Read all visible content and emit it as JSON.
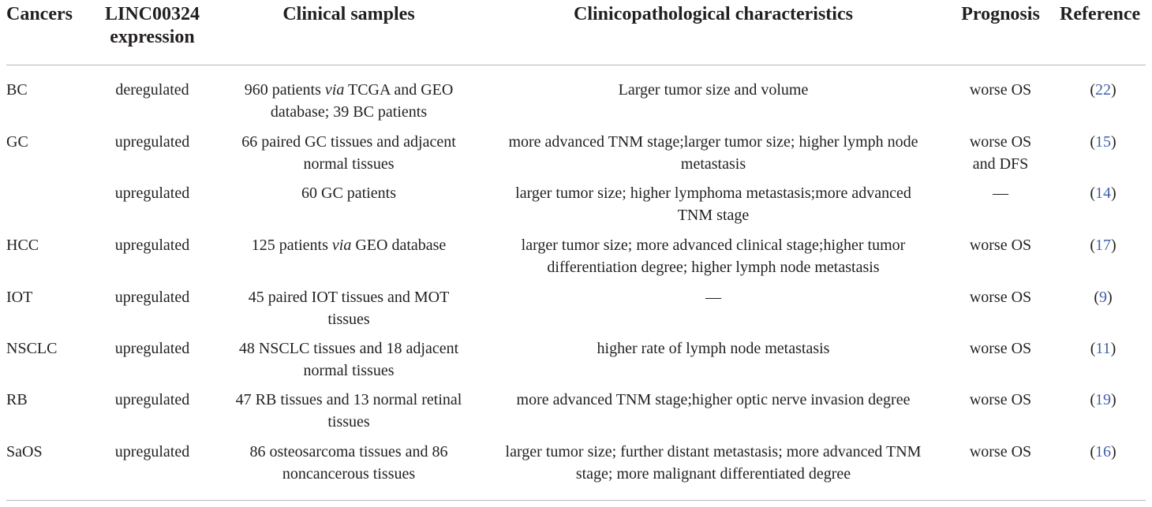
{
  "headers": {
    "cancers": "Cancers",
    "expr_line1": "LINC00324",
    "expr_line2": "expression",
    "samples": "Clinical samples",
    "clinico": "Clinicopathological characteristics",
    "prognosis": "Prognosis",
    "reference": "Reference"
  },
  "rows": [
    {
      "cancer": "BC",
      "expression": "deregulated",
      "samples_l1_a": "960 patients ",
      "samples_l1_em": "via",
      "samples_l1_b": " TCGA and GEO",
      "samples_l2": "database; 39 BC patients",
      "clin_l1": "Larger tumor size and volume",
      "clin_l2": "",
      "prog_l1": "worse OS",
      "prog_l2": "",
      "ref": "22"
    },
    {
      "cancer": "GC",
      "expression": "upregulated",
      "samples_l1": "66 paired GC tissues and adjacent",
      "samples_l2": "normal tissues",
      "clin_l1": "more advanced TNM stage;larger tumor size; higher lymph node",
      "clin_l2": "metastasis",
      "prog_l1": "worse OS",
      "prog_l2": "and DFS",
      "ref": "15"
    },
    {
      "cancer": "",
      "expression": "upregulated",
      "samples_l1": "60 GC patients",
      "samples_l2": "",
      "clin_l1": "larger tumor size; higher lymphoma metastasis;more advanced",
      "clin_l2": "TNM stage",
      "prog_l1": "—",
      "prog_l2": "",
      "ref": "14"
    },
    {
      "cancer": "HCC",
      "expression": "upregulated",
      "samples_l1_a": "125 patients ",
      "samples_l1_em": "via",
      "samples_l1_b": " GEO database",
      "samples_l2": "",
      "clin_l1": "larger tumor size; more advanced clinical stage;higher tumor",
      "clin_l2": "differentiation degree; higher lymph node metastasis",
      "prog_l1": "worse OS",
      "prog_l2": "",
      "ref": "17"
    },
    {
      "cancer": "IOT",
      "expression": "upregulated",
      "samples_l1": "45 paired IOT tissues and MOT",
      "samples_l2": "tissues",
      "clin_l1": "—",
      "clin_l2": "",
      "prog_l1": "worse OS",
      "prog_l2": "",
      "ref": "9"
    },
    {
      "cancer": "NSCLC",
      "expression": "upregulated",
      "samples_l1": "48 NSCLC tissues and 18 adjacent",
      "samples_l2": "normal tissues",
      "clin_l1": "higher rate of lymph node metastasis",
      "clin_l2": "",
      "prog_l1": "worse OS",
      "prog_l2": "",
      "ref": "11"
    },
    {
      "cancer": "RB",
      "expression": "upregulated",
      "samples_l1": "47 RB tissues and 13 normal retinal",
      "samples_l2": "tissues",
      "clin_l1": "more advanced TNM stage;higher optic nerve invasion degree",
      "clin_l2": "",
      "prog_l1": "worse OS",
      "prog_l2": "",
      "ref": "19"
    },
    {
      "cancer": "SaOS",
      "expression": "upregulated",
      "samples_l1": "86 osteosarcoma tissues and 86",
      "samples_l2": "noncancerous tissues",
      "clin_l1": "larger tumor size; further distant metastasis; more advanced TNM",
      "clin_l2": "stage; more malignant differentiated degree",
      "prog_l1": "worse OS",
      "prog_l2": "",
      "ref": "16"
    }
  ],
  "colors": {
    "text": "#231f20",
    "link": "#3f5ea9",
    "rule": "#b9b9b9"
  }
}
